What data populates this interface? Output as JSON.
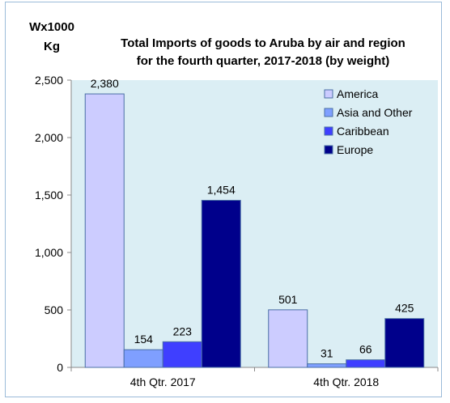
{
  "chart_data": {
    "type": "bar",
    "title_lines": [
      "Total Imports of goods to Aruba by air and region",
      "for the fourth quarter, 2017-2018 (by weight)"
    ],
    "ylabel_lines": [
      "Wx1000",
      "Kg"
    ],
    "xlabel": "",
    "categories": [
      "4th Qtr. 2017",
      "4th Qtr. 2018"
    ],
    "series": [
      {
        "name": "America",
        "values": [
          2380,
          501
        ],
        "labels": [
          "2,380",
          "501"
        ],
        "color": "#ccccff"
      },
      {
        "name": "Asia and Other",
        "values": [
          154,
          31
        ],
        "labels": [
          "154",
          "31"
        ],
        "color": "#7f9fff"
      },
      {
        "name": "Caribbean",
        "values": [
          223,
          66
        ],
        "labels": [
          "223",
          "66"
        ],
        "color": "#3f3fff"
      },
      {
        "name": "Europe",
        "values": [
          1454,
          425
        ],
        "labels": [
          "1,454",
          "425"
        ],
        "color": "#00008b"
      }
    ],
    "ylim": [
      0,
      2500
    ],
    "yticks": [
      0,
      500,
      1000,
      1500,
      2000,
      2500
    ],
    "ytick_labels": [
      "0",
      "500",
      "1,000",
      "1,500",
      "2,000",
      "2,500"
    ],
    "grid": false,
    "legend_position": "top-right",
    "plot_background": "#dbeef4"
  }
}
